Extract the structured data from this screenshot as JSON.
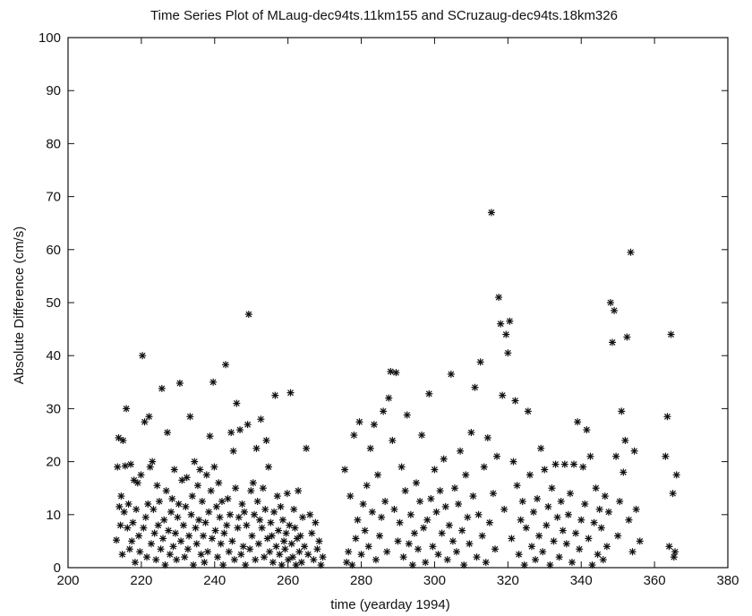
{
  "chart_data": {
    "type": "scatter",
    "title": "Time Series Plot of MLaug-dec94ts.11km155 and SCruzaug-dec94ts.18km326",
    "xlabel": "time (yearday 1994)",
    "ylabel": "Absolute Difference (cm/s)",
    "xlim": [
      200,
      380
    ],
    "ylim": [
      0,
      100
    ],
    "xticks": [
      200,
      220,
      240,
      260,
      280,
      300,
      320,
      340,
      360,
      380
    ],
    "yticks": [
      0,
      10,
      20,
      30,
      40,
      50,
      60,
      70,
      80,
      90,
      100
    ],
    "grid": false,
    "legend": "none",
    "marker": "asterisk",
    "marker_color": "#111111",
    "points": [
      [
        213.2,
        5.2
      ],
      [
        213.5,
        19.0
      ],
      [
        213.8,
        24.5
      ],
      [
        214.0,
        11.5
      ],
      [
        214.3,
        8.0
      ],
      [
        214.5,
        13.5
      ],
      [
        214.8,
        2.5
      ],
      [
        215.0,
        24.0
      ],
      [
        215.3,
        10.5
      ],
      [
        215.6,
        19.2
      ],
      [
        215.9,
        30.0
      ],
      [
        216.2,
        7.5
      ],
      [
        216.5,
        12.0
      ],
      [
        216.8,
        3.5
      ],
      [
        217.1,
        19.5
      ],
      [
        217.4,
        5.0
      ],
      [
        217.7,
        8.5
      ],
      [
        218.0,
        16.5
      ],
      [
        218.3,
        1.0
      ],
      [
        218.6,
        11.0
      ],
      [
        219.0,
        16.0
      ],
      [
        219.3,
        6.0
      ],
      [
        219.6,
        3.0
      ],
      [
        219.9,
        17.5
      ],
      [
        220.3,
        40.0
      ],
      [
        220.6,
        7.5
      ],
      [
        220.9,
        27.5
      ],
      [
        221.2,
        9.5
      ],
      [
        221.5,
        2.0
      ],
      [
        221.8,
        12.0
      ],
      [
        222.1,
        28.5
      ],
      [
        222.4,
        19.0
      ],
      [
        222.7,
        4.5
      ],
      [
        223.0,
        20.0
      ],
      [
        223.3,
        11.0
      ],
      [
        223.6,
        6.5
      ],
      [
        224.0,
        1.5
      ],
      [
        224.3,
        15.5
      ],
      [
        224.6,
        8.0
      ],
      [
        224.9,
        12.5
      ],
      [
        225.3,
        3.5
      ],
      [
        225.6,
        33.8
      ],
      [
        225.9,
        5.5
      ],
      [
        226.2,
        9.0
      ],
      [
        226.5,
        0.5
      ],
      [
        226.8,
        14.5
      ],
      [
        227.1,
        25.5
      ],
      [
        227.4,
        7.0
      ],
      [
        227.8,
        2.5
      ],
      [
        228.1,
        10.5
      ],
      [
        228.4,
        13.0
      ],
      [
        228.7,
        4.0
      ],
      [
        229.0,
        18.5
      ],
      [
        229.3,
        6.5
      ],
      [
        229.6,
        1.5
      ],
      [
        229.9,
        9.5
      ],
      [
        230.2,
        12.0
      ],
      [
        230.5,
        34.8
      ],
      [
        230.8,
        5.0
      ],
      [
        231.1,
        16.5
      ],
      [
        231.5,
        8.0
      ],
      [
        231.8,
        2.0
      ],
      [
        232.1,
        11.5
      ],
      [
        232.4,
        17.0
      ],
      [
        232.7,
        3.5
      ],
      [
        233.0,
        6.0
      ],
      [
        233.3,
        28.5
      ],
      [
        233.6,
        10.0
      ],
      [
        233.9,
        13.5
      ],
      [
        234.2,
        0.5
      ],
      [
        234.5,
        20.0
      ],
      [
        234.8,
        7.5
      ],
      [
        235.1,
        4.5
      ],
      [
        235.4,
        15.5
      ],
      [
        235.7,
        9.0
      ],
      [
        236.0,
        18.5
      ],
      [
        236.3,
        2.5
      ],
      [
        236.6,
        12.5
      ],
      [
        236.9,
        6.0
      ],
      [
        237.2,
        1.0
      ],
      [
        237.5,
        8.5
      ],
      [
        237.8,
        17.5
      ],
      [
        238.1,
        3.0
      ],
      [
        238.4,
        10.5
      ],
      [
        238.7,
        24.8
      ],
      [
        239.0,
        14.5
      ],
      [
        239.3,
        5.5
      ],
      [
        239.6,
        35.0
      ],
      [
        239.9,
        19.0
      ],
      [
        240.2,
        7.0
      ],
      [
        240.5,
        11.5
      ],
      [
        240.8,
        2.0
      ],
      [
        241.1,
        16.0
      ],
      [
        241.4,
        9.5
      ],
      [
        241.7,
        4.5
      ],
      [
        242.0,
        12.5
      ],
      [
        242.3,
        0.5
      ],
      [
        242.6,
        6.5
      ],
      [
        243.0,
        38.3
      ],
      [
        243.3,
        8.0
      ],
      [
        243.6,
        13.0
      ],
      [
        243.9,
        3.0
      ],
      [
        244.2,
        10.0
      ],
      [
        244.5,
        25.5
      ],
      [
        244.8,
        5.0
      ],
      [
        245.1,
        22.0
      ],
      [
        245.4,
        1.5
      ],
      [
        245.7,
        15.0
      ],
      [
        246.0,
        31.0
      ],
      [
        246.3,
        7.5
      ],
      [
        246.6,
        9.5
      ],
      [
        246.9,
        26.0
      ],
      [
        247.2,
        2.5
      ],
      [
        247.5,
        12.0
      ],
      [
        247.8,
        4.0
      ],
      [
        248.1,
        10.5
      ],
      [
        248.4,
        0.5
      ],
      [
        248.7,
        8.0
      ],
      [
        249.0,
        27.0
      ],
      [
        249.3,
        47.8
      ],
      [
        249.6,
        3.5
      ],
      [
        249.9,
        14.5
      ],
      [
        250.2,
        6.0
      ],
      [
        250.5,
        16.0
      ],
      [
        250.8,
        10.0
      ],
      [
        251.1,
        1.5
      ],
      [
        251.4,
        22.5
      ],
      [
        251.7,
        12.5
      ],
      [
        252.0,
        4.5
      ],
      [
        252.3,
        9.0
      ],
      [
        252.6,
        28.0
      ],
      [
        252.9,
        7.5
      ],
      [
        253.2,
        15.0
      ],
      [
        253.5,
        2.0
      ],
      [
        253.8,
        11.0
      ],
      [
        254.1,
        24.0
      ],
      [
        254.4,
        5.5
      ],
      [
        254.7,
        19.0
      ],
      [
        255.0,
        3.0
      ],
      [
        255.3,
        8.5
      ],
      [
        255.6,
        6.0
      ],
      [
        255.9,
        1.0
      ],
      [
        256.2,
        10.5
      ],
      [
        256.5,
        32.5
      ],
      [
        256.8,
        4.0
      ],
      [
        257.1,
        13.5
      ],
      [
        257.4,
        7.0
      ],
      [
        257.7,
        2.5
      ],
      [
        258.0,
        11.5
      ],
      [
        258.3,
        0.5
      ],
      [
        258.6,
        9.0
      ],
      [
        258.9,
        5.0
      ],
      [
        259.2,
        3.5
      ],
      [
        259.5,
        6.5
      ],
      [
        259.8,
        14.0
      ],
      [
        260.1,
        1.5
      ],
      [
        260.4,
        8.0
      ],
      [
        260.7,
        33.0
      ],
      [
        261.0,
        4.5
      ],
      [
        261.3,
        2.0
      ],
      [
        261.6,
        11.0
      ],
      [
        261.9,
        7.5
      ],
      [
        262.2,
        0.5
      ],
      [
        262.5,
        5.5
      ],
      [
        262.8,
        14.5
      ],
      [
        263.1,
        3.0
      ],
      [
        263.4,
        6.0
      ],
      [
        263.7,
        1.0
      ],
      [
        264.0,
        9.5
      ],
      [
        264.5,
        4.0
      ],
      [
        265.0,
        22.5
      ],
      [
        265.5,
        2.5
      ],
      [
        266.0,
        10.0
      ],
      [
        266.5,
        6.5
      ],
      [
        267.0,
        1.5
      ],
      [
        267.5,
        8.5
      ],
      [
        268.0,
        3.5
      ],
      [
        268.5,
        5.0
      ],
      [
        269.0,
        0.5
      ],
      [
        269.5,
        2.0
      ],
      [
        275.5,
        18.5
      ],
      [
        276.0,
        1.0
      ],
      [
        276.5,
        3.0
      ],
      [
        277.0,
        13.5
      ],
      [
        277.5,
        0.5
      ],
      [
        278.0,
        25.0
      ],
      [
        278.5,
        5.5
      ],
      [
        279.0,
        9.0
      ],
      [
        279.5,
        27.5
      ],
      [
        280.0,
        2.5
      ],
      [
        280.5,
        12.0
      ],
      [
        281.0,
        7.0
      ],
      [
        281.5,
        15.5
      ],
      [
        282.0,
        4.0
      ],
      [
        282.5,
        22.5
      ],
      [
        283.0,
        10.5
      ],
      [
        283.5,
        27.0
      ],
      [
        284.0,
        1.5
      ],
      [
        284.5,
        17.5
      ],
      [
        285.0,
        6.0
      ],
      [
        285.5,
        9.5
      ],
      [
        286.0,
        29.5
      ],
      [
        286.5,
        12.5
      ],
      [
        287.0,
        3.0
      ],
      [
        287.5,
        32.0
      ],
      [
        288.0,
        37.0
      ],
      [
        288.5,
        24.0
      ],
      [
        289.0,
        11.0
      ],
      [
        289.5,
        36.8
      ],
      [
        290.0,
        5.0
      ],
      [
        290.5,
        8.5
      ],
      [
        291.0,
        19.0
      ],
      [
        291.5,
        2.0
      ],
      [
        292.0,
        14.5
      ],
      [
        292.5,
        28.8
      ],
      [
        293.0,
        4.5
      ],
      [
        293.5,
        10.0
      ],
      [
        294.0,
        0.5
      ],
      [
        294.5,
        6.5
      ],
      [
        295.0,
        16.0
      ],
      [
        295.5,
        3.5
      ],
      [
        296.0,
        12.5
      ],
      [
        296.5,
        25.0
      ],
      [
        297.0,
        7.5
      ],
      [
        297.5,
        1.0
      ],
      [
        298.0,
        9.0
      ],
      [
        298.5,
        32.8
      ],
      [
        299.0,
        13.0
      ],
      [
        299.5,
        4.0
      ],
      [
        300.0,
        18.5
      ],
      [
        300.5,
        10.5
      ],
      [
        301.0,
        2.5
      ],
      [
        301.5,
        14.5
      ],
      [
        302.0,
        6.5
      ],
      [
        302.5,
        20.5
      ],
      [
        303.0,
        11.5
      ],
      [
        303.5,
        1.5
      ],
      [
        304.0,
        8.0
      ],
      [
        304.5,
        36.5
      ],
      [
        305.0,
        5.0
      ],
      [
        305.5,
        15.0
      ],
      [
        306.0,
        3.0
      ],
      [
        306.5,
        12.0
      ],
      [
        307.0,
        22.0
      ],
      [
        307.5,
        7.0
      ],
      [
        308.0,
        0.5
      ],
      [
        308.5,
        17.5
      ],
      [
        309.0,
        9.5
      ],
      [
        309.5,
        4.5
      ],
      [
        310.0,
        25.5
      ],
      [
        310.5,
        13.5
      ],
      [
        311.0,
        34.0
      ],
      [
        311.5,
        2.0
      ],
      [
        312.0,
        10.0
      ],
      [
        312.5,
        38.8
      ],
      [
        313.0,
        6.0
      ],
      [
        313.5,
        19.0
      ],
      [
        314.0,
        1.0
      ],
      [
        314.5,
        24.5
      ],
      [
        315.0,
        8.5
      ],
      [
        315.5,
        67.0
      ],
      [
        316.0,
        14.0
      ],
      [
        316.5,
        3.5
      ],
      [
        317.0,
        21.0
      ],
      [
        317.5,
        51.0
      ],
      [
        318.0,
        46.0
      ],
      [
        318.5,
        32.5
      ],
      [
        319.0,
        11.0
      ],
      [
        319.5,
        44.0
      ],
      [
        320.0,
        40.5
      ],
      [
        320.5,
        46.5
      ],
      [
        321.0,
        5.5
      ],
      [
        321.5,
        20.0
      ],
      [
        322.0,
        31.5
      ],
      [
        322.5,
        15.5
      ],
      [
        323.0,
        2.5
      ],
      [
        323.5,
        9.0
      ],
      [
        324.0,
        12.5
      ],
      [
        324.5,
        0.5
      ],
      [
        325.0,
        7.5
      ],
      [
        325.5,
        29.5
      ],
      [
        326.0,
        17.5
      ],
      [
        326.5,
        4.0
      ],
      [
        327.0,
        10.5
      ],
      [
        327.5,
        1.5
      ],
      [
        328.0,
        13.0
      ],
      [
        328.5,
        6.0
      ],
      [
        329.0,
        22.5
      ],
      [
        329.5,
        3.0
      ],
      [
        330.0,
        18.5
      ],
      [
        330.5,
        8.0
      ],
      [
        331.0,
        11.5
      ],
      [
        331.5,
        0.5
      ],
      [
        332.0,
        15.0
      ],
      [
        332.5,
        5.0
      ],
      [
        333.0,
        19.5
      ],
      [
        333.5,
        9.5
      ],
      [
        334.0,
        2.0
      ],
      [
        334.5,
        12.5
      ],
      [
        335.0,
        7.0
      ],
      [
        335.5,
        19.5
      ],
      [
        336.0,
        4.5
      ],
      [
        336.5,
        10.0
      ],
      [
        337.0,
        14.0
      ],
      [
        337.5,
        1.0
      ],
      [
        338.0,
        19.5
      ],
      [
        338.5,
        6.5
      ],
      [
        339.0,
        27.5
      ],
      [
        339.5,
        3.5
      ],
      [
        340.0,
        9.0
      ],
      [
        340.5,
        19.0
      ],
      [
        341.0,
        12.0
      ],
      [
        341.5,
        26.0
      ],
      [
        342.0,
        5.5
      ],
      [
        342.5,
        21.0
      ],
      [
        343.0,
        0.5
      ],
      [
        343.5,
        8.5
      ],
      [
        344.0,
        15.0
      ],
      [
        344.5,
        2.5
      ],
      [
        345.0,
        11.0
      ],
      [
        345.5,
        7.5
      ],
      [
        346.0,
        1.5
      ],
      [
        346.5,
        13.5
      ],
      [
        347.0,
        4.0
      ],
      [
        347.5,
        10.5
      ],
      [
        348.0,
        50.0
      ],
      [
        348.5,
        42.5
      ],
      [
        349.0,
        48.5
      ],
      [
        349.5,
        21.0
      ],
      [
        350.0,
        6.0
      ],
      [
        350.5,
        12.5
      ],
      [
        351.0,
        29.5
      ],
      [
        351.5,
        18.0
      ],
      [
        352.0,
        24.0
      ],
      [
        352.5,
        43.5
      ],
      [
        353.0,
        9.0
      ],
      [
        353.5,
        59.5
      ],
      [
        354.0,
        3.0
      ],
      [
        354.5,
        22.0
      ],
      [
        355.0,
        11.0
      ],
      [
        356.0,
        5.0
      ],
      [
        363.0,
        21.0
      ],
      [
        363.5,
        28.5
      ],
      [
        364.0,
        4.0
      ],
      [
        364.5,
        44.0
      ],
      [
        365.0,
        14.0
      ],
      [
        365.3,
        2.0
      ],
      [
        365.6,
        3.0
      ],
      [
        366.0,
        17.5
      ]
    ]
  }
}
